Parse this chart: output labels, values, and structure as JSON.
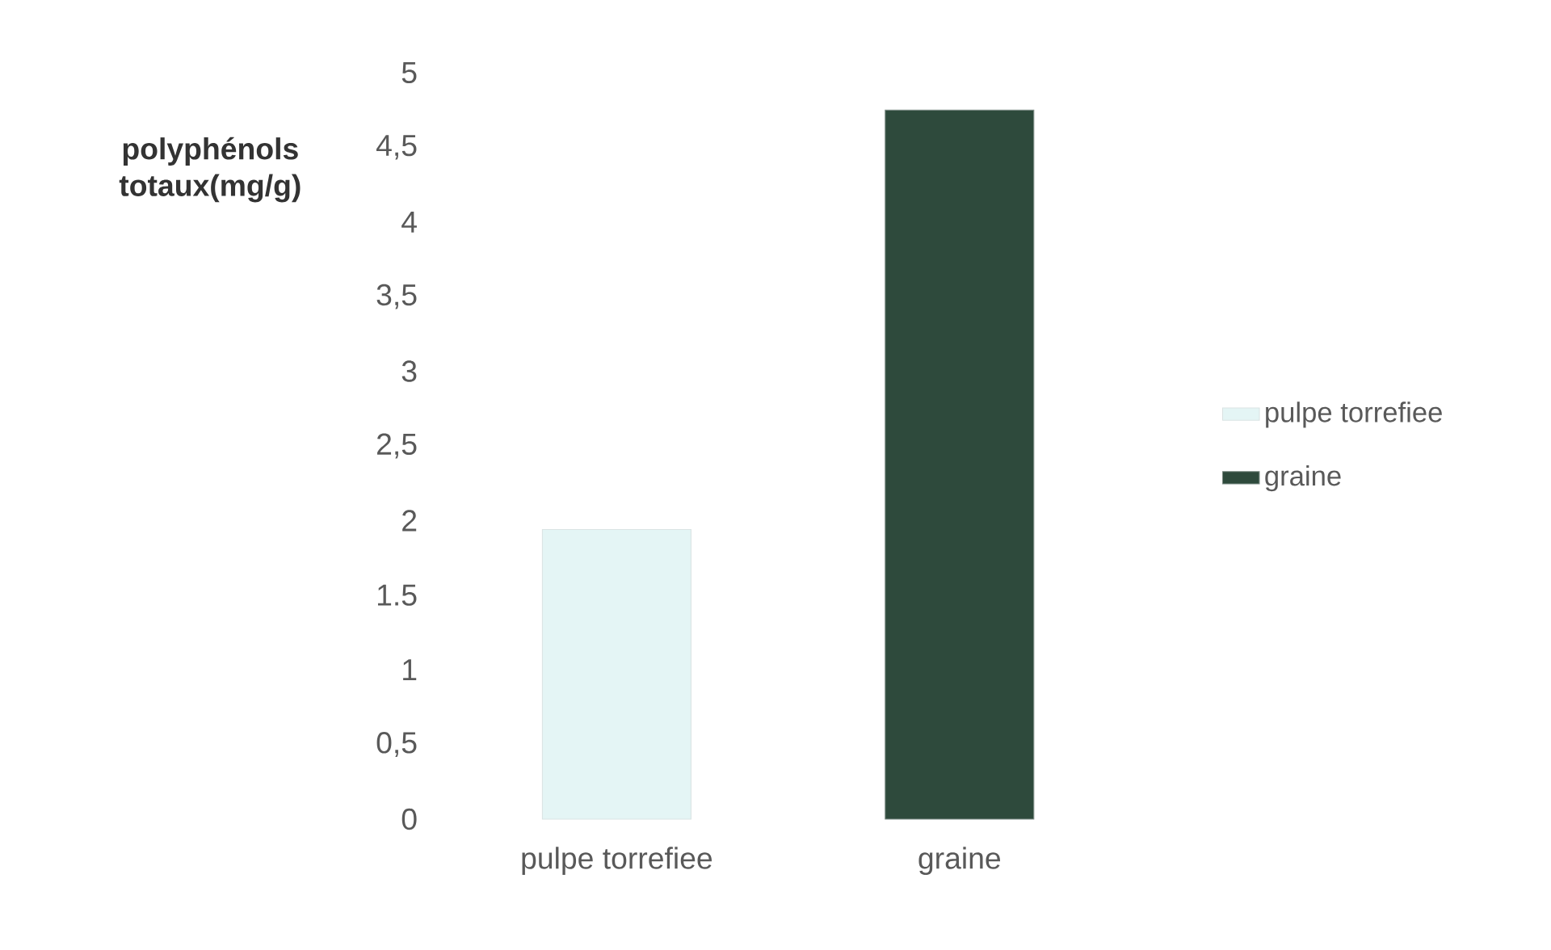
{
  "chart_data": {
    "type": "bar",
    "ylabel": "polyphénols totaux(mg/g)",
    "categories": [
      "pulpe torrefiee",
      "graine"
    ],
    "series": [
      {
        "name": "pulpe torrefiee",
        "color": "#e4f5f5",
        "values": [
          1.94,
          null
        ]
      },
      {
        "name": "graine",
        "color": "#2e4a3c",
        "values": [
          null,
          4.75
        ]
      }
    ],
    "ylim": [
      0,
      5
    ],
    "yticks": [
      0,
      {
        "value": 0.5,
        "label": "0,5"
      },
      1,
      {
        "value": 1.5,
        "label": "1.5"
      },
      2,
      {
        "value": 2.5,
        "label": "2,5"
      },
      3,
      {
        "value": 3.5,
        "label": "3,5"
      },
      4,
      {
        "value": 4.5,
        "label": "4,5"
      },
      5
    ],
    "legend": "right"
  }
}
